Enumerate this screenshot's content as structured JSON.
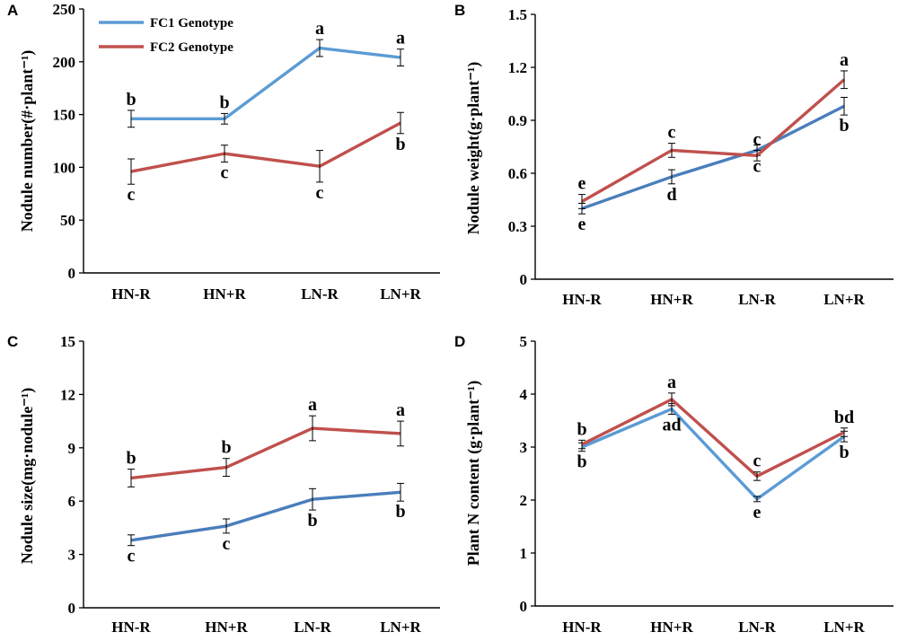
{
  "legend": {
    "series": [
      {
        "name": "FC1 Genotype",
        "color": "#5b9bd5"
      },
      {
        "name": "FC2 Genotype",
        "color": "#c0504d"
      }
    ]
  },
  "chart_data": [
    {
      "panel": "A",
      "type": "line",
      "categories": [
        "HN-R",
        "HN+R",
        "LN-R",
        "LN+R"
      ],
      "ylabel": "Nodule number(#·plant⁻¹)",
      "ylim": [
        0,
        250
      ],
      "yticks": [
        0,
        50,
        100,
        150,
        200,
        250
      ],
      "series": [
        {
          "name": "FC1 Genotype",
          "color": "#5b9bd5",
          "values": [
            146,
            146,
            213,
            204
          ],
          "errors": [
            8,
            5,
            8,
            8
          ],
          "letters": [
            "b",
            "b",
            "a",
            "a"
          ],
          "letter_pos": [
            "above",
            "above",
            "above",
            "above"
          ]
        },
        {
          "name": "FC2 Genotype",
          "color": "#c0504d",
          "values": [
            96,
            113,
            101,
            142
          ],
          "errors": [
            12,
            8,
            15,
            10
          ],
          "letters": [
            "c",
            "c",
            "c",
            "b"
          ],
          "letter_pos": [
            "below",
            "below",
            "below",
            "below"
          ]
        }
      ]
    },
    {
      "panel": "B",
      "type": "line",
      "categories": [
        "HN-R",
        "HN+R",
        "LN-R",
        "LN+R"
      ],
      "ylabel": "Nodule weight(g·plant⁻¹)",
      "ylim": [
        0,
        1.5
      ],
      "yticks": [
        0,
        0.3,
        0.6,
        0.9,
        1.2,
        1.5
      ],
      "ytick_labels": [
        "0",
        "0.3",
        "0.6",
        "0.9",
        "1.2",
        "1.5"
      ],
      "series": [
        {
          "name": "FC1 Genotype",
          "color": "#4a7ebb",
          "values": [
            0.4,
            0.58,
            0.73,
            0.98
          ],
          "errors": [
            0.03,
            0.04,
            0.03,
            0.05
          ],
          "letters": [
            "e",
            "d",
            "c",
            "b"
          ],
          "letter_pos": [
            "below",
            "below",
            "below",
            "below"
          ]
        },
        {
          "name": "FC2 Genotype",
          "color": "#c0504d",
          "values": [
            0.44,
            0.73,
            0.7,
            1.13
          ],
          "errors": [
            0.04,
            0.04,
            0.03,
            0.05
          ],
          "letters": [
            "e",
            "c",
            "c",
            "a"
          ],
          "letter_pos": [
            "above",
            "above",
            "above",
            "above"
          ]
        }
      ]
    },
    {
      "panel": "C",
      "type": "line",
      "categories": [
        "HN-R",
        "HN+R",
        "LN-R",
        "LN+R"
      ],
      "ylabel": "Nodule size(mg·nodule⁻¹)",
      "ylim": [
        0,
        15
      ],
      "yticks": [
        0,
        3,
        6,
        9,
        12,
        15
      ],
      "series": [
        {
          "name": "FC1 Genotype",
          "color": "#4a7ebb",
          "values": [
            3.8,
            4.6,
            6.1,
            6.5
          ],
          "errors": [
            0.3,
            0.4,
            0.6,
            0.5
          ],
          "letters": [
            "c",
            "c",
            "b",
            "b"
          ],
          "letter_pos": [
            "below",
            "below",
            "below",
            "below"
          ]
        },
        {
          "name": "FC2 Genotype",
          "color": "#c0504d",
          "values": [
            7.3,
            7.9,
            10.1,
            9.8
          ],
          "errors": [
            0.5,
            0.5,
            0.7,
            0.7
          ],
          "letters": [
            "b",
            "b",
            "a",
            "a"
          ],
          "letter_pos": [
            "above",
            "above",
            "above",
            "above"
          ]
        }
      ]
    },
    {
      "panel": "D",
      "type": "line",
      "categories": [
        "HN-R",
        "HN+R",
        "LN-R",
        "LN+R"
      ],
      "ylabel": "Plant N content (g·plant⁻¹)",
      "ylim": [
        0,
        5
      ],
      "yticks": [
        0,
        1,
        2,
        3,
        4,
        5
      ],
      "series": [
        {
          "name": "FC1 Genotype",
          "color": "#5b9bd5",
          "values": [
            3.0,
            3.72,
            2.02,
            3.2
          ],
          "errors": [
            0.08,
            0.1,
            0.05,
            0.1
          ],
          "letters": [
            "b",
            "ad",
            "e",
            "b"
          ],
          "letter_pos": [
            "below",
            "below",
            "below",
            "below"
          ]
        },
        {
          "name": "FC2 Genotype",
          "color": "#c0504d",
          "values": [
            3.05,
            3.9,
            2.45,
            3.28
          ],
          "errors": [
            0.08,
            0.12,
            0.08,
            0.08
          ],
          "letters": [
            "b",
            "a",
            "c",
            "bd"
          ],
          "letter_pos": [
            "above",
            "above",
            "above",
            "above"
          ]
        }
      ]
    }
  ]
}
